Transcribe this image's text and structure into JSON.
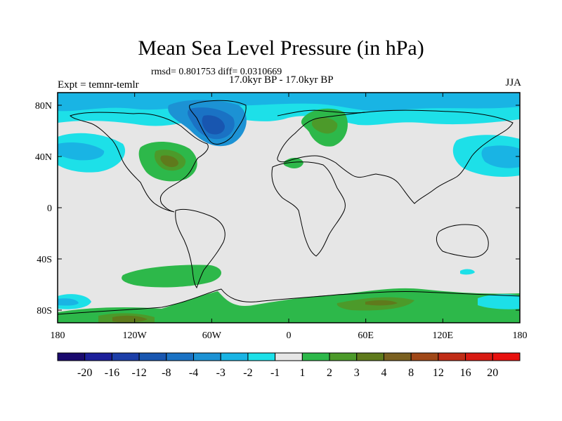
{
  "header": {
    "title": "Mean Sea Level Pressure (in hPa)",
    "stats": "rmsd= 0.801753 diff= 0.0310669",
    "expt": "Expt = temnr-temlr",
    "period": "17.0kyr BP - 17.0kyr BP",
    "season": "JJA"
  },
  "axes": {
    "lon_ticks": [
      "180",
      "120W",
      "60W",
      "0",
      "60E",
      "120E",
      "180"
    ],
    "lat_ticks": [
      "80N",
      "40N",
      "0",
      "40S",
      "80S"
    ]
  },
  "colorbar": {
    "labels": [
      "-20",
      "-16",
      "-12",
      "-8",
      "-4",
      "-3",
      "-2",
      "-1",
      "1",
      "2",
      "3",
      "4",
      "8",
      "12",
      "16",
      "20"
    ],
    "colors": [
      "#1a0a6e",
      "#1c1f9a",
      "#1c3ea8",
      "#1856b0",
      "#1a72c4",
      "#1c92d4",
      "#19b4e4",
      "#1de0e8",
      "#e6e6e6",
      "#2db84a",
      "#4c9a2a",
      "#5f7a1c",
      "#7a6020",
      "#a04818",
      "#c02c16",
      "#d81a12",
      "#e8100e"
    ]
  },
  "colors": {
    "land_outline": "#000000",
    "neutral": "#e6e6e6"
  }
}
